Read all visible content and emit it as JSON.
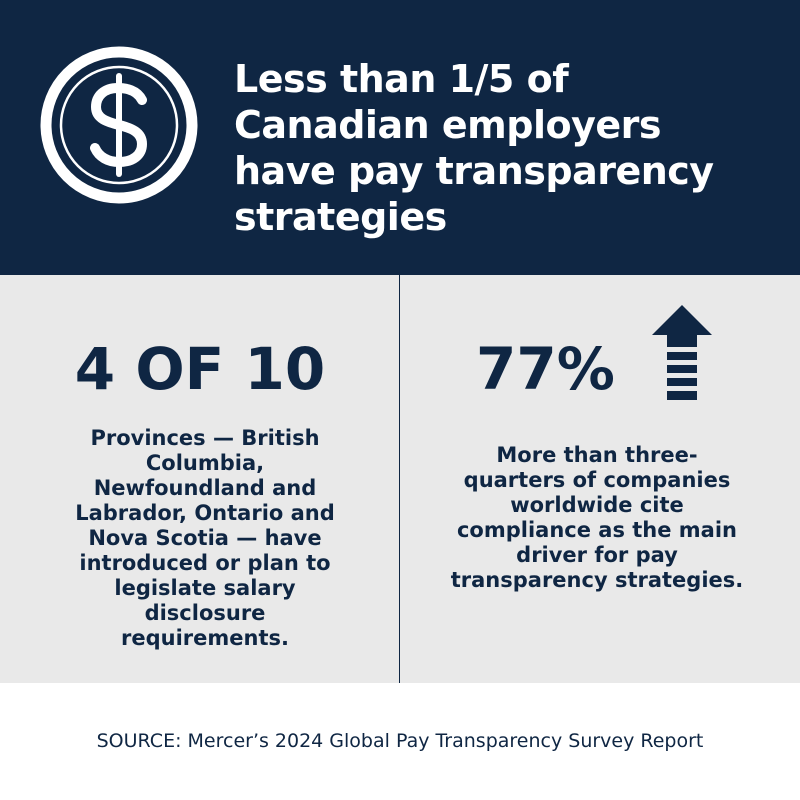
{
  "header": {
    "headline": "Less than 1/5 of Canadian employers have pay transparency strategies",
    "icon": "dollar-coin-icon"
  },
  "stats": {
    "left": {
      "value": "4 OF 10",
      "description": "Provinces — British Columbia, Newfoundland and Labrador, Ontario and Nova Scotia — have introduced or plan to legislate salary disclosure requirements."
    },
    "right": {
      "value": "77%",
      "icon": "up-arrow-icon",
      "description": "More than three-quarters of companies worldwide cite compliance as the main driver for pay transparency strategies."
    }
  },
  "source": "SOURCE: Mercer’s 2024 Global Pay Transparency Survey Report",
  "colors": {
    "navy": "#0f2643",
    "panel": "#e9e9e9",
    "white": "#ffffff"
  }
}
